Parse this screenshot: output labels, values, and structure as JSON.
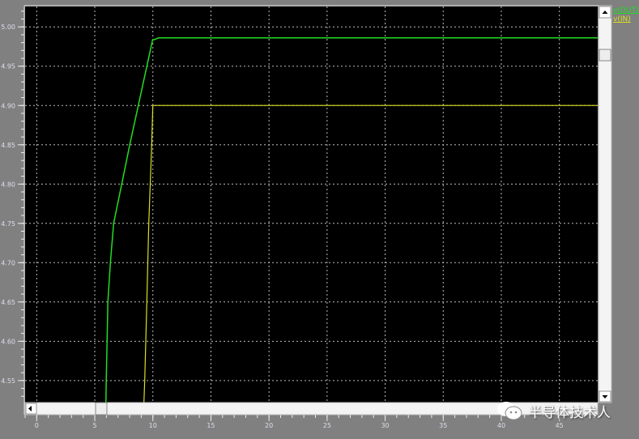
{
  "chart_data": {
    "type": "line",
    "title": "",
    "xlabel": "",
    "ylabel": "",
    "xlim": [
      -1,
      48.3
    ],
    "ylim": [
      4.522,
      5.026
    ],
    "xticks": [
      0,
      5,
      10,
      15,
      20,
      25,
      30,
      35,
      40,
      45
    ],
    "xtick_labels": [
      "0",
      "5",
      "10",
      "15",
      "20",
      "25",
      "30",
      "35",
      "40",
      "45"
    ],
    "yticks": [
      5.0,
      4.95,
      4.9,
      4.85,
      4.8,
      4.75,
      4.7,
      4.65,
      4.6,
      4.55
    ],
    "ytick_labels": [
      "5.00",
      "4.95",
      "4.90",
      "4.85",
      "4.80",
      "4.75",
      "4.70",
      "4.65",
      "4.60",
      "4.55"
    ],
    "grid": true,
    "background": "#000000",
    "legend_placement": "right-top",
    "series": [
      {
        "name": "v(OUT)",
        "color": "#22dd22",
        "x": [
          5.96,
          5.99,
          6.06,
          6.13,
          6.34,
          6.62,
          7.32,
          8.01,
          9.97,
          10.5,
          48.3
        ],
        "y": [
          4.522,
          4.55,
          4.6,
          4.65,
          4.7,
          4.75,
          4.8,
          4.85,
          4.983,
          4.986,
          4.986
        ]
      },
      {
        "name": "v(IN)",
        "color": "#dddd22",
        "x": [
          9.23,
          9.3,
          9.48,
          9.65,
          9.9,
          10.0,
          48.3
        ],
        "y": [
          4.522,
          4.55,
          4.65,
          4.75,
          4.85,
          4.9,
          4.9
        ]
      }
    ]
  },
  "watermark": "半导体技术人"
}
